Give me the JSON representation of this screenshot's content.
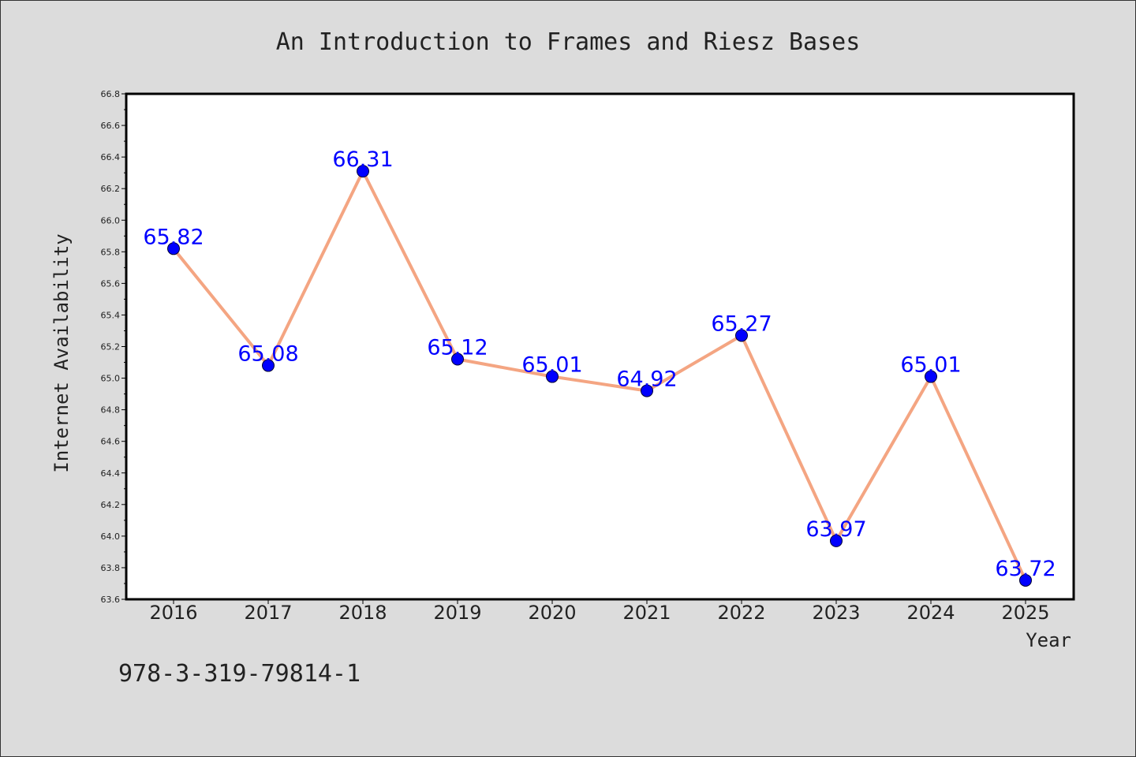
{
  "colors": {
    "background": "#dcdcdc",
    "plot_background": "#ffffff",
    "line": "#f4a582",
    "marker": "#0000ff",
    "data_label": "#0000ff",
    "text": "#222222"
  },
  "footer": {
    "isbn": "978-3-319-79814-1"
  },
  "chart_data": {
    "type": "line",
    "title": "An Introduction to Frames and Riesz Bases",
    "xlabel": "Year",
    "ylabel": "Internet Availability",
    "categories": [
      "2016",
      "2017",
      "2018",
      "2019",
      "2020",
      "2021",
      "2022",
      "2023",
      "2024",
      "2025"
    ],
    "series": [
      {
        "values": [
          65.82,
          65.08,
          66.31,
          65.12,
          65.01,
          64.92,
          65.27,
          63.97,
          65.01,
          63.72
        ]
      }
    ],
    "data_labels": [
      "65.82",
      "65.08",
      "66.31",
      "65.12",
      "65.01",
      "64.92",
      "65.27",
      "63.97",
      "65.01",
      "63.72"
    ],
    "ylim": [
      63.6,
      66.8
    ],
    "yticks": [
      "63.6",
      "63.8",
      "64.0",
      "64.2",
      "64.4",
      "64.6",
      "64.8",
      "65.0",
      "65.2",
      "65.4",
      "65.6",
      "65.8",
      "66.0",
      "66.2",
      "66.4",
      "66.6",
      "66.8"
    ],
    "grid": false,
    "legend": "none"
  }
}
